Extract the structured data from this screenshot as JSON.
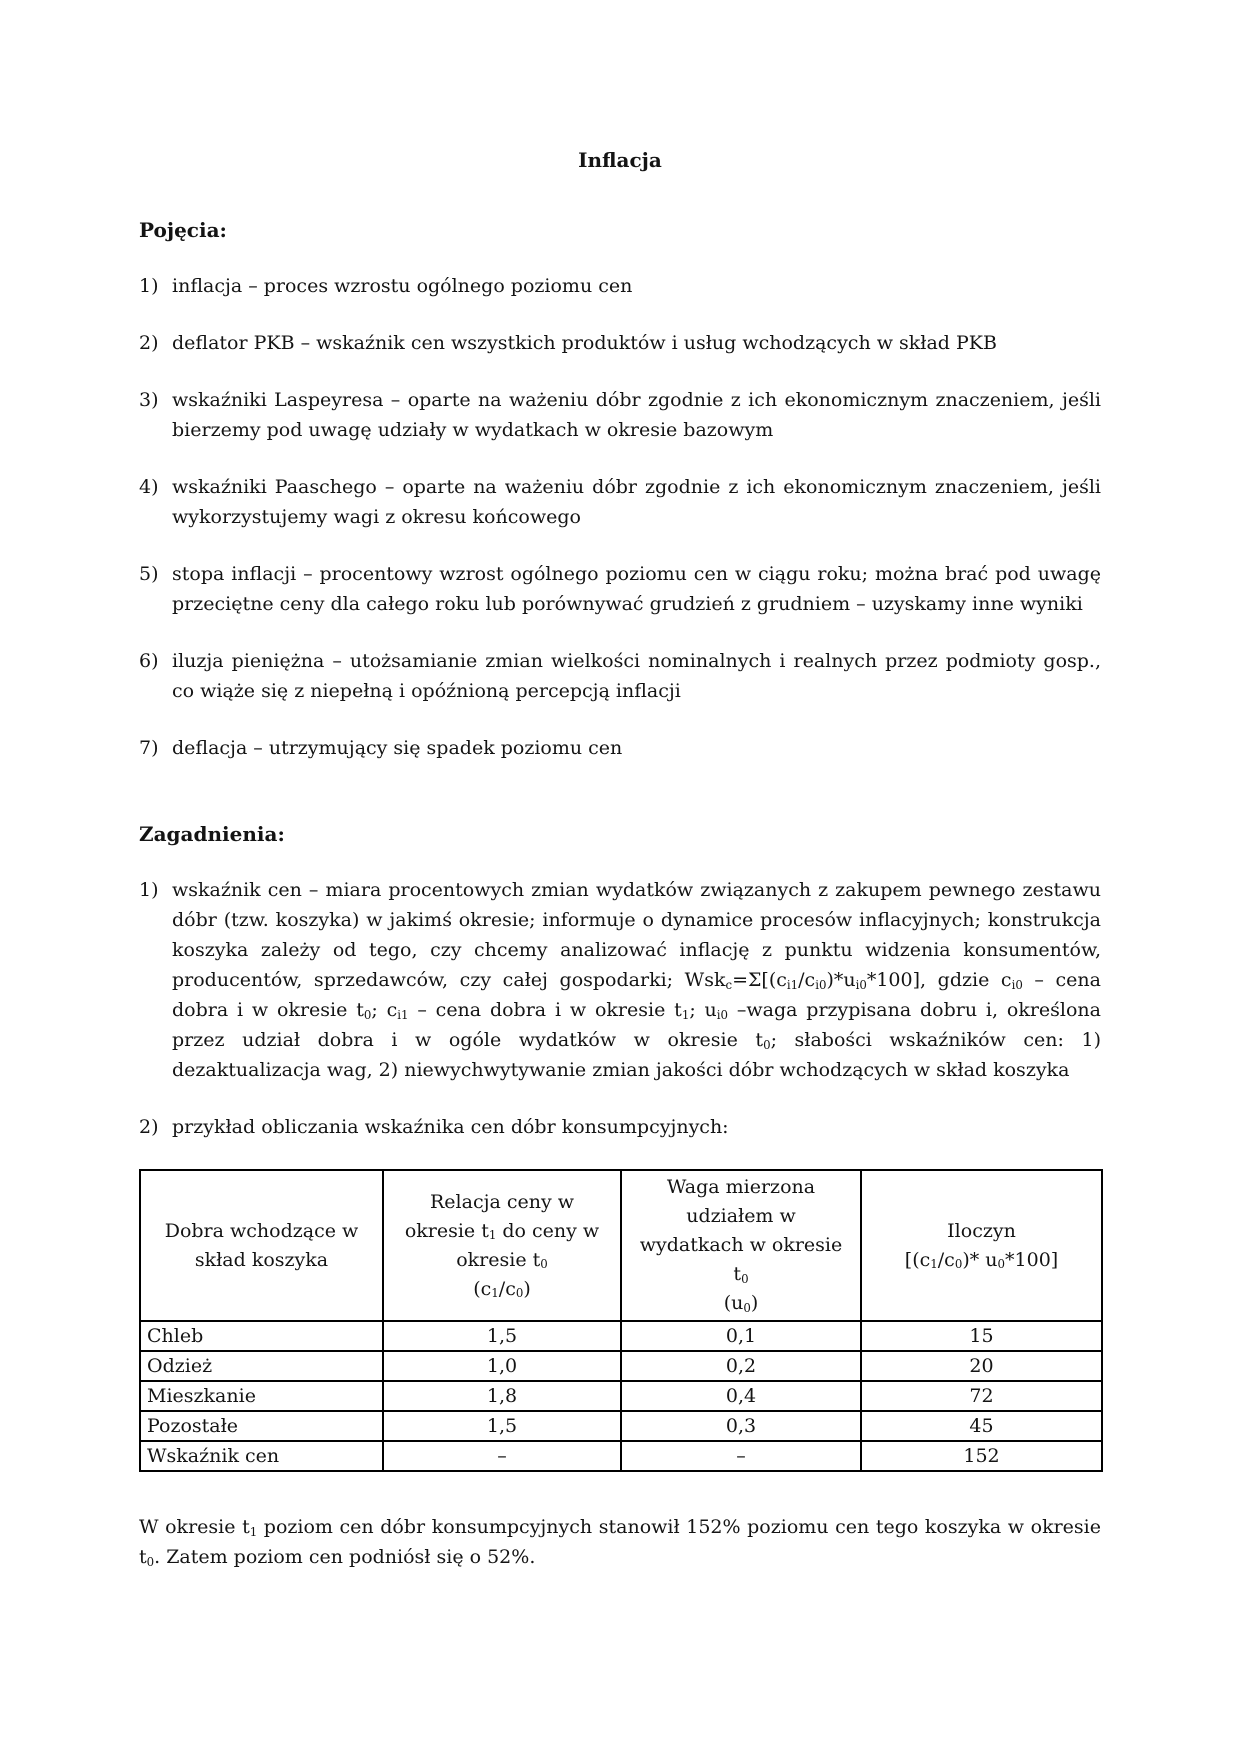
{
  "title": "Inflacja",
  "pojecia": {
    "heading": "Pojęcia:",
    "items": [
      {
        "num": "1)",
        "text": "inflacja – proces wzrostu ogólnego poziomu cen"
      },
      {
        "num": "2)",
        "text": "deflator PKB – wskaźnik cen wszystkich produktów i usług wchodzących w skład PKB"
      },
      {
        "num": "3)",
        "text": "wskaźniki Laspeyresa – oparte na ważeniu dóbr zgodnie z ich ekonomicznym znaczeniem, jeśli bierzemy pod uwagę udziały w wydatkach w okresie bazowym"
      },
      {
        "num": "4)",
        "text": "wskaźniki Paaschego – oparte na ważeniu dóbr zgodnie z ich ekonomicznym znaczeniem, jeśli wykorzystujemy wagi z okresu końcowego"
      },
      {
        "num": "5)",
        "text": "stopa inflacji – procentowy wzrost ogólnego poziomu cen w ciągu roku; można brać pod uwagę przeciętne ceny dla całego roku lub porównywać grudzień z grudniem – uzyskamy inne wyniki"
      },
      {
        "num": "6)",
        "text": "iluzja pieniężna – utożsamianie zmian wielkości nominalnych i realnych przez podmioty gosp., co wiąże się z niepełną i opóźnioną percepcją inflacji"
      },
      {
        "num": "7)",
        "text": "deflacja – utrzymujący się spadek poziomu cen"
      }
    ]
  },
  "zagadnienia": {
    "heading": "Zagadnienia:",
    "items": [
      {
        "num": "1)",
        "text": "wskaźnik cen – miara procentowych zmian wydatków związanych z zakupem pewnego zestawu dóbr (tzw. koszyka) w jakimś okresie; informuje o dynamice procesów inflacyjnych; konstrukcja koszyka zależy od tego, czy chcemy analizować inflację z punktu widzenia konsumentów, producentów, sprzedawców, czy całej gospodarki; Wsk~c~=Σ[(c~i1~/c~i0~)*u~i0~*100], gdzie c~i0~ – cena dobra i w okresie t~0~; c~i1~ – cena dobra i w okresie t~1~; u~i0~ –waga przypisana dobru i, określona przez udział dobra i w ogóle wydatków w okresie t~0~; słabości wskaźników cen: 1) dezaktualizacja wag, 2) niewychwytywanie zmian jakości dóbr wchodzących w skład koszyka"
      },
      {
        "num": "2)",
        "text": "przykład obliczania wskaźnika cen dóbr konsumpcyjnych:"
      }
    ]
  },
  "table": {
    "headers": [
      "Dobra wchodzące w\nskład koszyka",
      "Relacja ceny w\nokresie t~1~ do ceny w\nokresie t~0~\n(c~1~/c~0~)",
      "Waga mierzona\nudziałem w\nwydatkach w okresie\nt~0~\n(u~0~)",
      "Iloczyn\n[(c~1~/c~0~)* u~0~*100]"
    ],
    "rows": [
      [
        "Chleb",
        "1,5",
        "0,1",
        "15"
      ],
      [
        "Odzież",
        "1,0",
        "0,2",
        "20"
      ],
      [
        "Mieszkanie",
        "1,8",
        "0,4",
        "72"
      ],
      [
        "Pozostałe",
        "1,5",
        "0,3",
        "45"
      ],
      [
        "Wskaźnik cen",
        "–",
        "–",
        "152"
      ]
    ]
  },
  "footer": "W okresie t~1~ poziom cen dóbr konsumpcyjnych stanowił 152% poziomu cen tego koszyka w okresie t~0~. Zatem poziom cen podniósł się o 52%."
}
